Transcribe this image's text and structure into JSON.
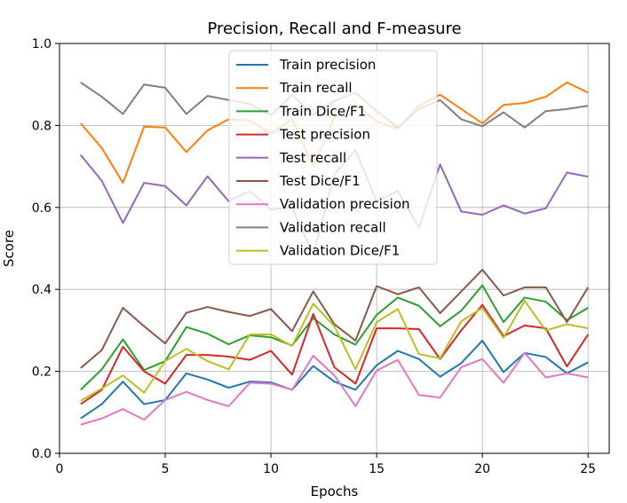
{
  "chart_data": {
    "type": "line",
    "title": "Precision, Recall and F-measure",
    "xlabel": "Epochs",
    "ylabel": "Score",
    "xlim": [
      0,
      26
    ],
    "ylim": [
      0.0,
      1.0
    ],
    "xticks": [
      0,
      5,
      10,
      15,
      20,
      25
    ],
    "yticks": [
      0.0,
      0.2,
      0.4,
      0.6,
      0.8,
      1.0
    ],
    "grid": true,
    "legend_placement": "upper center",
    "x": [
      1,
      2,
      3,
      4,
      5,
      6,
      7,
      8,
      9,
      10,
      11,
      12,
      13,
      14,
      15,
      16,
      17,
      18,
      19,
      20,
      21,
      22,
      23,
      24,
      25
    ],
    "series": [
      {
        "name": "Train precision",
        "color": "#1f77b4",
        "values": [
          0.085,
          0.12,
          0.175,
          0.12,
          0.13,
          0.195,
          0.18,
          0.16,
          0.175,
          0.173,
          0.155,
          0.213,
          0.175,
          0.155,
          0.215,
          0.25,
          0.23,
          0.187,
          0.22,
          0.275,
          0.198,
          0.245,
          0.235,
          0.195,
          0.222
        ]
      },
      {
        "name": "Train recall",
        "color": "#ff7f0e",
        "values": [
          0.805,
          0.745,
          0.66,
          0.797,
          0.795,
          0.735,
          0.788,
          0.815,
          0.812,
          0.78,
          0.815,
          0.7,
          0.82,
          0.85,
          0.81,
          0.792,
          0.848,
          0.875,
          0.84,
          0.805,
          0.85,
          0.855,
          0.87,
          0.905,
          0.88
        ]
      },
      {
        "name": "Train Dice/F1",
        "color": "#2ca02c",
        "values": [
          0.155,
          0.205,
          0.278,
          0.203,
          0.225,
          0.308,
          0.292,
          0.266,
          0.288,
          0.283,
          0.263,
          0.33,
          0.29,
          0.265,
          0.338,
          0.38,
          0.36,
          0.31,
          0.348,
          0.41,
          0.32,
          0.38,
          0.37,
          0.325,
          0.355
        ]
      },
      {
        "name": "Test precision",
        "color": "#d62728",
        "values": [
          0.12,
          0.155,
          0.26,
          0.2,
          0.17,
          0.24,
          0.24,
          0.236,
          0.228,
          0.25,
          0.192,
          0.34,
          0.21,
          0.17,
          0.305,
          0.305,
          0.303,
          0.23,
          0.3,
          0.362,
          0.286,
          0.312,
          0.305,
          0.212,
          0.29
        ]
      },
      {
        "name": "Test recall",
        "color": "#9467bd",
        "values": [
          0.728,
          0.665,
          0.562,
          0.66,
          0.652,
          0.605,
          0.676,
          0.615,
          0.64,
          0.595,
          0.6,
          0.485,
          0.68,
          0.74,
          0.615,
          0.64,
          0.55,
          0.705,
          0.59,
          0.582,
          0.605,
          0.585,
          0.598,
          0.685,
          0.675
        ]
      },
      {
        "name": "Test Dice/F1",
        "color": "#8c564b",
        "values": [
          0.208,
          0.252,
          0.355,
          0.31,
          0.268,
          0.343,
          0.357,
          0.345,
          0.335,
          0.352,
          0.298,
          0.395,
          0.315,
          0.275,
          0.408,
          0.388,
          0.405,
          0.342,
          0.395,
          0.448,
          0.385,
          0.405,
          0.405,
          0.32,
          0.405
        ]
      },
      {
        "name": "Validation precision",
        "color": "#e377c2",
        "values": [
          0.07,
          0.085,
          0.108,
          0.082,
          0.13,
          0.15,
          0.13,
          0.115,
          0.172,
          0.17,
          0.155,
          0.238,
          0.19,
          0.115,
          0.202,
          0.228,
          0.142,
          0.136,
          0.21,
          0.23,
          0.172,
          0.245,
          0.185,
          0.195,
          0.185
        ]
      },
      {
        "name": "Validation recall",
        "color": "#7f7f7f",
        "values": [
          0.905,
          0.87,
          0.828,
          0.9,
          0.892,
          0.828,
          0.872,
          0.862,
          0.852,
          0.825,
          0.875,
          0.825,
          0.86,
          0.88,
          0.835,
          0.795,
          0.84,
          0.862,
          0.815,
          0.798,
          0.832,
          0.795,
          0.835,
          0.84,
          0.848
        ]
      },
      {
        "name": "Validation Dice/F1",
        "color": "#bcbd22",
        "values": [
          0.128,
          0.158,
          0.19,
          0.148,
          0.225,
          0.255,
          0.225,
          0.205,
          0.29,
          0.29,
          0.262,
          0.365,
          0.31,
          0.205,
          0.32,
          0.352,
          0.242,
          0.232,
          0.322,
          0.355,
          0.282,
          0.372,
          0.3,
          0.315,
          0.305
        ]
      }
    ]
  }
}
